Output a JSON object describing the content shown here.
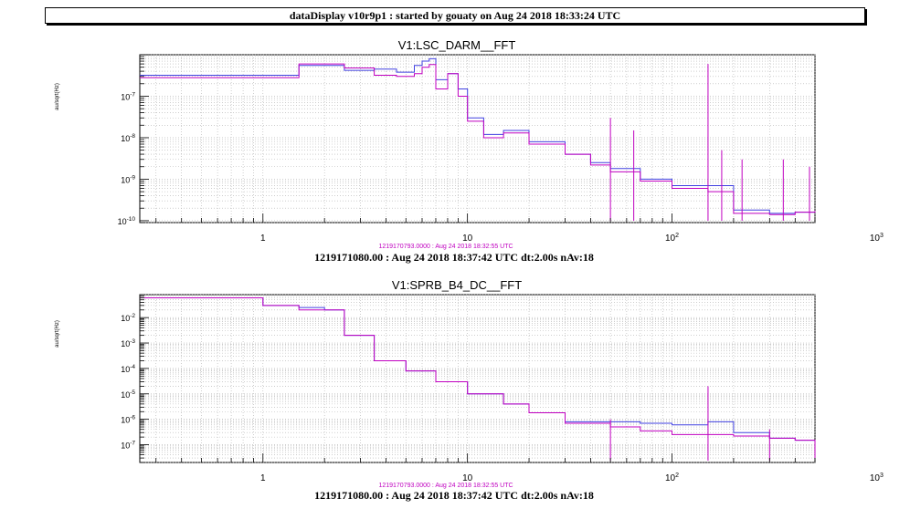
{
  "header": {
    "title": "dataDisplay v10r9p1 : started by gouaty on Aug 24 2018 18:33:24 UTC"
  },
  "colors": {
    "reference": "#4040e0",
    "current": "#c000c0",
    "reference_label": "#c000c0"
  },
  "chart_data": [
    {
      "type": "line",
      "title": "V1:LSC_DARM__FFT",
      "ylabel": "au/sqrt(Hz)",
      "xscale": "log",
      "yscale": "log",
      "xlim": [
        0.25,
        500
      ],
      "ylim": [
        9e-11,
        1e-06
      ],
      "grid": true,
      "x_tick_labels": [
        "1",
        "10",
        "10^2",
        "10^3"
      ],
      "y_tick_labels": [
        "10^-10",
        "10^-9",
        "10^-8",
        "10^-7"
      ],
      "reference_label": "1219170793.0000 : Aug 24 2018 18:32:55 UTC",
      "footer": "1219171080.00 : Aug 24 2018 18:37:42 UTC dt:2.00s nAv:18",
      "series": [
        {
          "color": "#4040e0",
          "x": [
            0.25,
            0.75,
            1.5,
            2.5,
            3.5,
            4.5,
            5.5,
            6.0,
            6.5,
            7.0,
            8.0,
            9.0,
            10,
            12,
            15,
            20,
            30,
            40,
            50,
            70,
            100,
            150,
            200,
            300,
            400,
            500
          ],
          "y": [
            3.2e-07,
            3.2e-07,
            5.5e-07,
            4.2e-07,
            4.5e-07,
            3.8e-07,
            5.5e-07,
            7e-07,
            8e-07,
            2.5e-07,
            3.5e-07,
            1.5e-07,
            3e-08,
            1.2e-08,
            1.5e-08,
            8e-09,
            4e-09,
            2.5e-09,
            1.8e-09,
            1e-09,
            7e-10,
            7e-10,
            1.8e-10,
            1.5e-10,
            1.6e-10,
            1.7e-10
          ]
        },
        {
          "color": "#c000c0",
          "x": [
            0.25,
            0.75,
            1.5,
            2.5,
            3.5,
            4.5,
            5.5,
            6.0,
            6.5,
            7.0,
            8.0,
            9.0,
            10,
            12,
            15,
            20,
            30,
            40,
            50,
            70,
            100,
            150,
            200,
            300,
            400,
            500
          ],
          "y": [
            2.8e-07,
            2.8e-07,
            6e-07,
            4.8e-07,
            3.2e-07,
            3e-07,
            3.5e-07,
            5e-07,
            5.8e-07,
            1.5e-07,
            3.5e-07,
            1e-07,
            2.5e-08,
            1e-08,
            1.3e-08,
            7e-09,
            4e-09,
            2.2e-09,
            1.5e-09,
            9e-10,
            6e-10,
            5e-10,
            1.5e-10,
            1.4e-10,
            1.6e-10,
            1.7e-10
          ],
          "peaks": [
            [
              50,
              3e-08
            ],
            [
              65,
              1.5e-08
            ],
            [
              150,
              6e-07
            ],
            [
              175,
              5e-09
            ],
            [
              220,
              3e-09
            ],
            [
              350,
              3e-09
            ],
            [
              470,
              2e-09
            ]
          ]
        }
      ]
    },
    {
      "type": "line",
      "title": "V1:SPRB_B4_DC__FFT",
      "ylabel": "au/sqrt(Hz)",
      "xscale": "log",
      "yscale": "log",
      "xlim": [
        0.25,
        500
      ],
      "ylim": [
        2e-08,
        0.08
      ],
      "grid": true,
      "x_tick_labels": [
        "1",
        "10",
        "10^2",
        "10^3"
      ],
      "y_tick_labels": [
        "10^-7",
        "10^-6",
        "10^-5",
        "10^-4",
        "10^-3",
        "10^-2"
      ],
      "reference_label": "1219170793.0000 : Aug 24 2018 18:32:55 UTC",
      "footer": "1219171080.00 : Aug 24 2018 18:37:42 UTC dt:2.00s nAv:18",
      "series": [
        {
          "color": "#4040e0",
          "x": [
            0.25,
            0.75,
            1.0,
            1.5,
            2.0,
            2.5,
            3.5,
            5,
            7,
            10,
            15,
            20,
            30,
            50,
            70,
            100,
            150,
            200,
            300,
            400,
            500
          ],
          "y": [
            0.06,
            0.06,
            0.03,
            0.025,
            0.02,
            0.002,
            0.0002,
            8e-05,
            3e-05,
            1e-05,
            4e-06,
            1.8e-06,
            8e-07,
            8e-07,
            7e-07,
            6e-07,
            8e-07,
            3e-07,
            1.8e-07,
            1.5e-07,
            3e-08
          ]
        },
        {
          "color": "#c000c0",
          "x": [
            0.25,
            0.75,
            1.0,
            1.5,
            2.0,
            2.5,
            3.5,
            5,
            7,
            10,
            15,
            20,
            30,
            50,
            70,
            100,
            150,
            200,
            300,
            400,
            500
          ],
          "y": [
            0.06,
            0.06,
            0.03,
            0.02,
            0.02,
            0.002,
            0.0002,
            8e-05,
            3e-05,
            1e-05,
            4e-06,
            1.8e-06,
            7e-07,
            5e-07,
            3.5e-07,
            2.5e-07,
            2.5e-07,
            2.2e-07,
            1.8e-07,
            1.5e-07,
            3e-08
          ],
          "peaks": [
            [
              50,
              1e-06
            ],
            [
              150,
              2e-05
            ],
            [
              300,
              4e-07
            ]
          ]
        }
      ]
    }
  ]
}
